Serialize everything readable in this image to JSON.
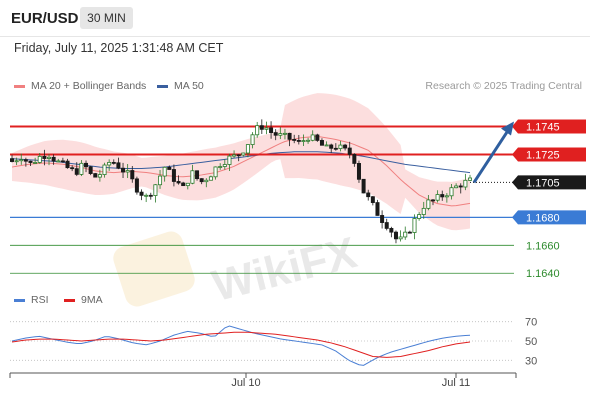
{
  "header": {
    "pair": "EUR/USD",
    "timeframe": "30 MIN"
  },
  "timestamp": "Friday, July 11, 2025 1:31:48 AM CET",
  "legend": {
    "ma20": {
      "label": "MA 20 + Bollinger Bands",
      "color": "#f08080"
    },
    "ma50": {
      "label": "MA 50",
      "color": "#3a5f9f"
    }
  },
  "copyright": "Research © 2025 Trading Central",
  "watermark": "WikiFX",
  "rsi_legend": {
    "rsi": {
      "label": "RSI",
      "color": "#4a7fd4"
    },
    "ma9": {
      "label": "9MA",
      "color": "#e02020"
    }
  },
  "chart_data": {
    "type": "candlestick",
    "price_axis": {
      "ylim": [
        1.1628,
        1.1764
      ]
    },
    "time_axis": {
      "labels": [
        "Jul 10",
        "Jul 11"
      ]
    },
    "levels": [
      {
        "label": "1.1745",
        "value": 1.1745,
        "role": "resistance",
        "color": "#e02020",
        "line": "solid-thick"
      },
      {
        "label": "1.1725",
        "value": 1.1725,
        "role": "resistance",
        "color": "#e02020",
        "line": "solid-thick"
      },
      {
        "label": "1.1705",
        "value": 1.1705,
        "role": "current",
        "color": "#1a1a1a",
        "line": "dotted"
      },
      {
        "label": "1.1680",
        "value": 1.168,
        "role": "pivot",
        "color": "#3a7bd5",
        "line": "solid"
      },
      {
        "label": "1.1660",
        "value": 1.166,
        "role": "support",
        "color": "#2e8b2e",
        "line": "thin"
      },
      {
        "label": "1.1640",
        "value": 1.164,
        "role": "support",
        "color": "#2e8b2e",
        "line": "thin"
      }
    ],
    "forecast_arrow": {
      "from": 1.1705,
      "to": 1.1745,
      "color": "#2f5f9f"
    },
    "close_path": [
      1.172,
      1.1724,
      1.1718,
      1.1723,
      1.1726,
      1.172,
      1.1716,
      1.1712,
      1.1718,
      1.1708,
      1.1712,
      1.1721,
      1.1716,
      1.171,
      1.17,
      1.1694,
      1.1704,
      1.1716,
      1.1708,
      1.17,
      1.1712,
      1.1705,
      1.171,
      1.1718,
      1.1722,
      1.1724,
      1.173,
      1.1742,
      1.1746,
      1.174,
      1.1738,
      1.1736,
      1.1733,
      1.1738,
      1.1734,
      1.1729,
      1.1731,
      1.1728,
      1.1724,
      1.17,
      1.169,
      1.168,
      1.1673,
      1.1662,
      1.1668,
      1.168,
      1.169,
      1.1692,
      1.1696,
      1.17,
      1.1704,
      1.1706
    ],
    "ma20_path": [
      1.1716,
      1.1718,
      1.1719,
      1.1718,
      1.1716,
      1.1713,
      1.1712,
      1.1713,
      1.1712,
      1.171,
      1.1709,
      1.171,
      1.1712,
      1.1716,
      1.1722,
      1.1728,
      1.1734,
      1.1737,
      1.1738,
      1.1736,
      1.1733,
      1.1728,
      1.1718,
      1.1706,
      1.1696,
      1.169,
      1.1688,
      1.169
    ],
    "ma50_path": [
      1.1722,
      1.1721,
      1.172,
      1.1718,
      1.1716,
      1.1715,
      1.1715,
      1.1716,
      1.1718,
      1.172,
      1.1722,
      1.1724,
      1.1726,
      1.1727,
      1.1727,
      1.1726,
      1.1724,
      1.1721,
      1.1718,
      1.1716,
      1.1714,
      1.1712
    ],
    "rsi": {
      "ylim": [
        20,
        80
      ],
      "ticks": [
        "70",
        "50",
        "30"
      ],
      "tick_values": [
        70,
        50,
        30
      ],
      "rsi_path": [
        50,
        53,
        55,
        52,
        49,
        47,
        50,
        55,
        52,
        48,
        46,
        50,
        56,
        60,
        58,
        54,
        66,
        62,
        58,
        55,
        52,
        50,
        48,
        46,
        40,
        30,
        24,
        32,
        38,
        42,
        46,
        50,
        53,
        55,
        56
      ],
      "ma9_path": [
        49,
        51,
        52,
        52,
        51,
        50,
        51,
        52,
        52,
        51,
        50,
        51,
        53,
        55,
        57,
        58,
        59,
        59,
        58,
        57,
        55,
        53,
        51,
        48,
        44,
        39,
        34,
        33,
        34,
        37,
        40,
        44,
        47,
        49
      ]
    }
  }
}
